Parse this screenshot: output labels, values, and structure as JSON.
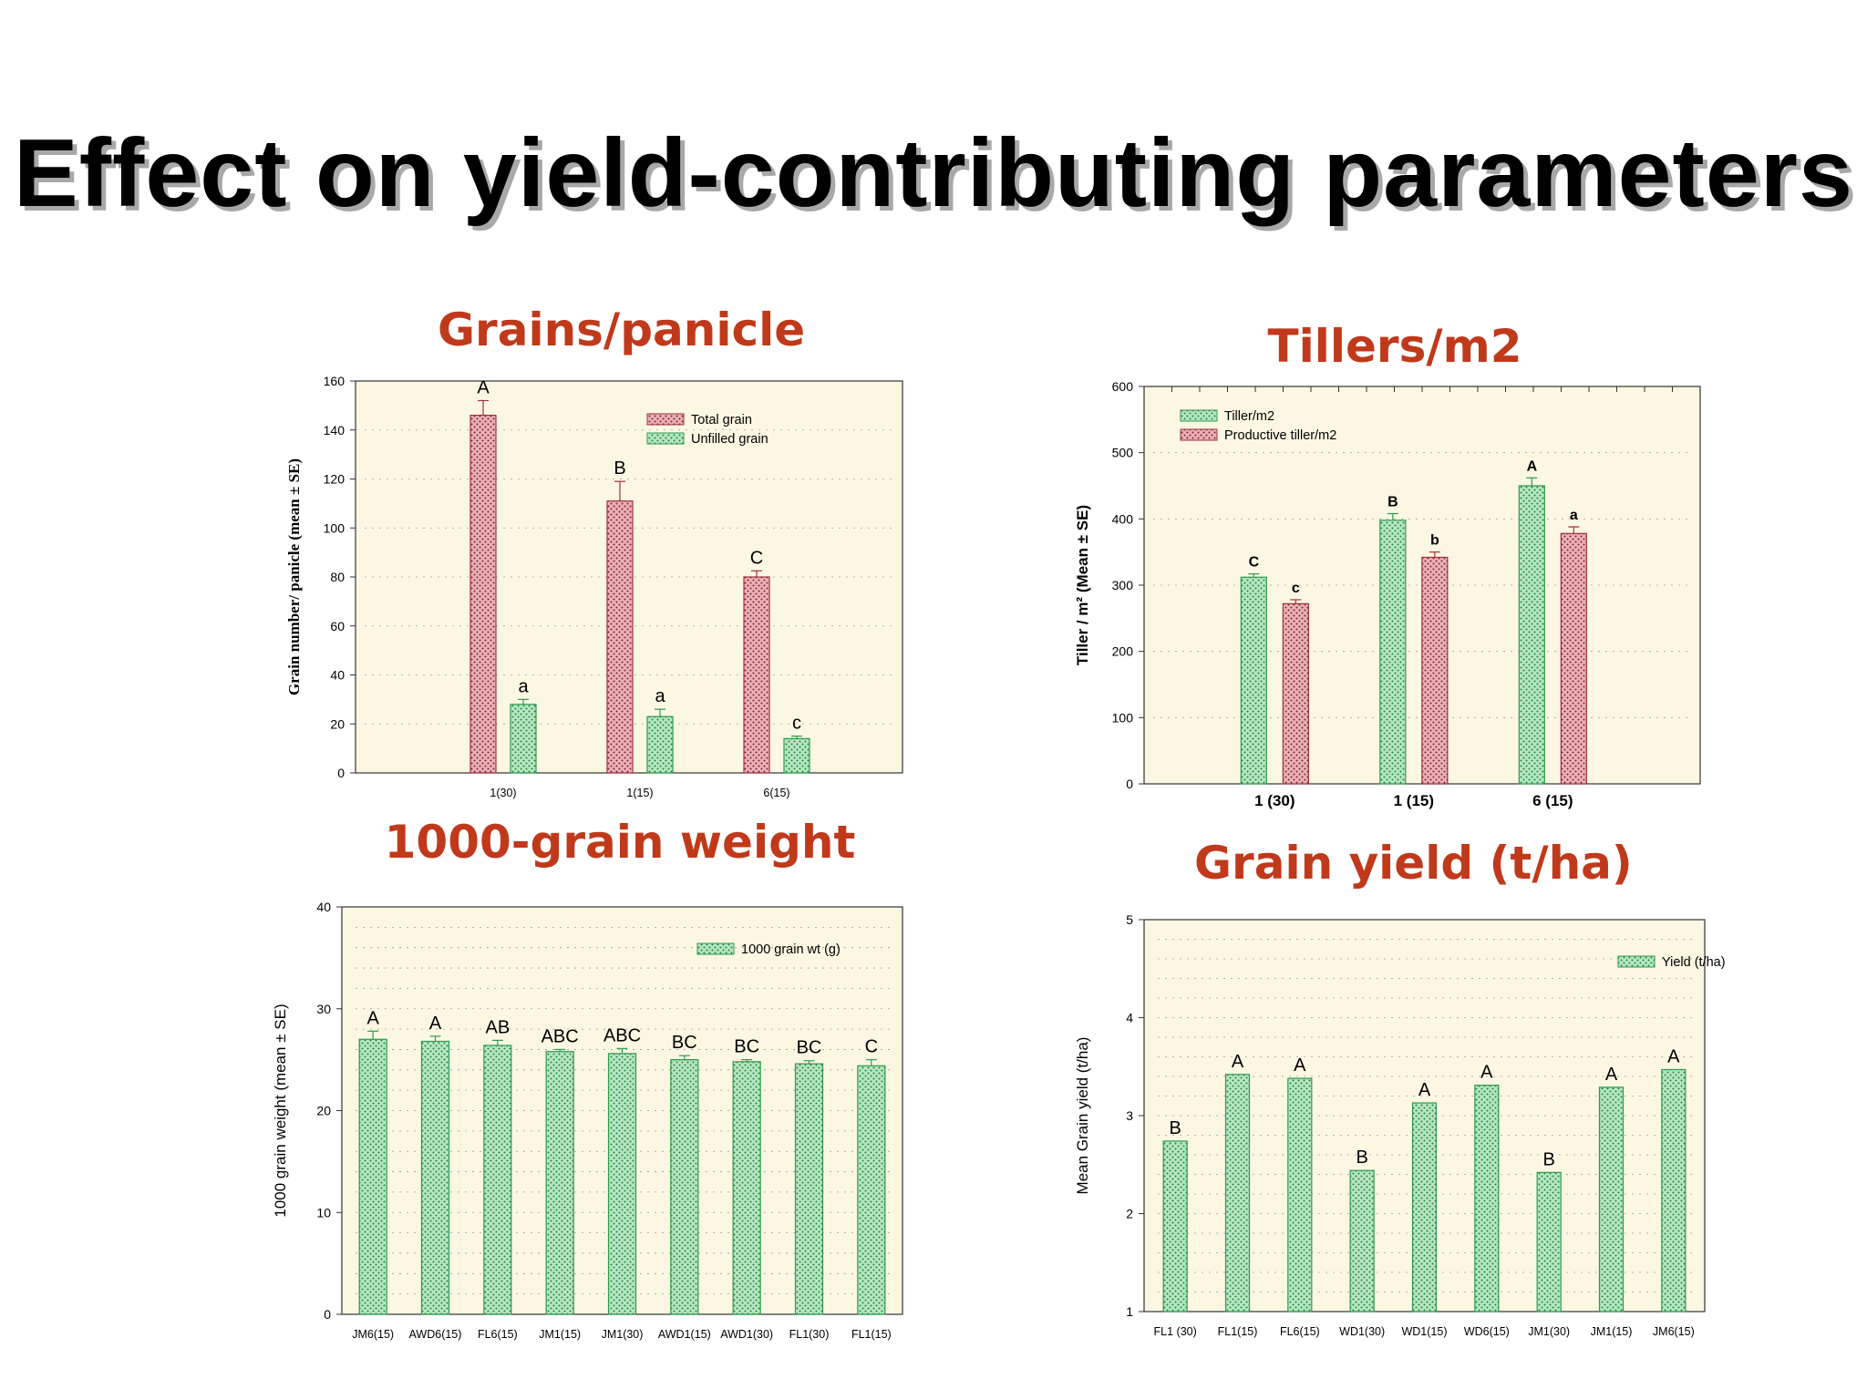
{
  "slide": {
    "title": "Effect on yield-contributing parameters"
  },
  "colors": {
    "plot_bg": "#fbf7e3",
    "red_bar": "#c4707b",
    "green_bar": "#79c98e",
    "title": "#c0391b"
  },
  "chart_data": [
    {
      "id": "grains",
      "type": "bar",
      "title": "Grains/panicle",
      "ylabel": "Grain number/ panicle (mean ± SE)",
      "xlabel": "",
      "ylim": [
        0,
        160
      ],
      "yticks": [
        0,
        20,
        40,
        60,
        80,
        100,
        120,
        140,
        160
      ],
      "categories": [
        "1(30)",
        "1(15)",
        "6(15)"
      ],
      "legend_position": "top-right",
      "series": [
        {
          "name": "Total grain",
          "color": "red",
          "values": [
            146,
            111,
            80
          ],
          "errors": [
            6,
            8,
            2.5
          ],
          "labels": [
            "A",
            "B",
            "C"
          ]
        },
        {
          "name": "Unfilled grain",
          "color": "green",
          "values": [
            28,
            23,
            14
          ],
          "errors": [
            2,
            3,
            1
          ],
          "labels": [
            "a",
            "a",
            "c"
          ]
        }
      ]
    },
    {
      "id": "tillers",
      "type": "bar",
      "title": "Tillers/m2",
      "ylabel": "Tiller / m² (Mean ± SE)",
      "xlabel": "",
      "ylim": [
        0,
        600
      ],
      "yticks": [
        0,
        100,
        200,
        300,
        400,
        500,
        600
      ],
      "categories": [
        "1 (30)",
        "1 (15)",
        "6 (15)"
      ],
      "legend_position": "top-left",
      "series": [
        {
          "name": "Tiller/m2",
          "color": "green",
          "values": [
            312,
            398,
            450
          ],
          "errors": [
            5,
            10,
            12
          ],
          "labels": [
            "C",
            "B",
            "A"
          ]
        },
        {
          "name": "Productive tiller/m2",
          "color": "red",
          "values": [
            272,
            342,
            378
          ],
          "errors": [
            6,
            8,
            10
          ],
          "labels": [
            "c",
            "b",
            "a"
          ]
        }
      ]
    },
    {
      "id": "weight",
      "type": "bar",
      "title": "1000-grain weight",
      "ylabel": "1000 grain weight (mean ± SE)",
      "xlabel": "",
      "ylim": [
        0,
        40
      ],
      "yticks": [
        0,
        10,
        20,
        30,
        40
      ],
      "categories": [
        "JM6(15)",
        "AWD6(15)",
        "FL6(15)",
        "JM1(15)",
        "JM1(30)",
        "AWD1(15)",
        "AWD1(30)",
        "FL1(30)",
        "FL1(15)"
      ],
      "legend_position": "top-right",
      "series": [
        {
          "name": "1000 grain wt (g)",
          "color": "green",
          "values": [
            27,
            26.8,
            26.4,
            25.8,
            25.6,
            25,
            24.8,
            24.6,
            24.4
          ],
          "errors": [
            0.8,
            0.5,
            0.5,
            0.2,
            0.5,
            0.4,
            0.2,
            0.3,
            0.6
          ],
          "labels": [
            "A",
            "A",
            "AB",
            "ABC",
            "ABC",
            "BC",
            "BC",
            "BC",
            "C"
          ]
        }
      ]
    },
    {
      "id": "yield",
      "type": "bar",
      "title": "Grain yield (t/ha)",
      "ylabel": "Mean Grain yield (t/ha)",
      "xlabel": "",
      "ylim": [
        1,
        5
      ],
      "yticks": [
        1,
        2,
        3,
        4,
        5
      ],
      "categories": [
        "FL1 (30)",
        "FL1(15)",
        "FL6(15)",
        "WD1(30)",
        "WD1(15)",
        "WD6(15)",
        "JM1(30)",
        "JM1(15)",
        "JM6(15)"
      ],
      "legend_position": "top-right",
      "series": [
        {
          "name": "Yield (t/ha)",
          "color": "green",
          "values": [
            2.74,
            3.42,
            3.38,
            2.44,
            3.13,
            3.31,
            2.42,
            3.29,
            3.47
          ],
          "errors": [
            0,
            0,
            0,
            0,
            0,
            0,
            0,
            0,
            0
          ],
          "labels": [
            "B",
            "A",
            "A",
            "B",
            "A",
            "A",
            "B",
            "A",
            "A"
          ]
        }
      ]
    }
  ]
}
